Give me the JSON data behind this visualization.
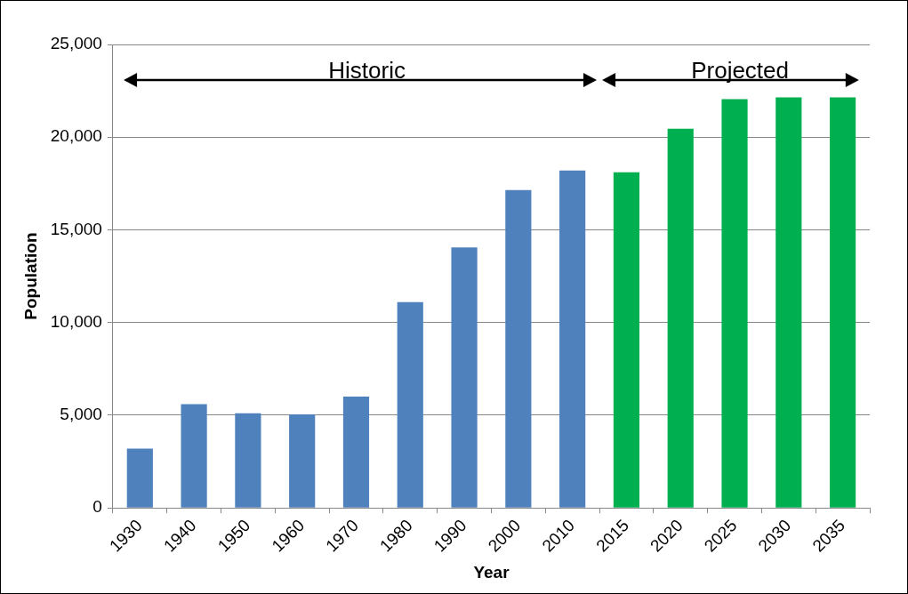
{
  "chart_data": {
    "type": "bar",
    "xlabel": "Year",
    "ylabel": "Population",
    "categories": [
      "1930",
      "1940",
      "1950",
      "1960",
      "1970",
      "1980",
      "1990",
      "2000",
      "2010",
      "2015",
      "2020",
      "2025",
      "2030",
      "2035"
    ],
    "values": [
      3200,
      5600,
      5100,
      5050,
      6000,
      11100,
      14050,
      17150,
      18200,
      18100,
      20450,
      22050,
      22150,
      22150
    ],
    "colors": [
      "#4f81bd",
      "#4f81bd",
      "#4f81bd",
      "#4f81bd",
      "#4f81bd",
      "#4f81bd",
      "#4f81bd",
      "#4f81bd",
      "#4f81bd",
      "#00b050",
      "#00b050",
      "#00b050",
      "#00b050",
      "#00b050"
    ],
    "ylim": [
      0,
      25000
    ],
    "yticks": [
      0,
      {
        "value": 5000,
        "label": "5,000"
      },
      {
        "value": 10000,
        "label": "10,000"
      },
      {
        "value": 15000,
        "label": "15,000"
      },
      {
        "value": 20000,
        "label": "20,000"
      },
      {
        "value": 25000,
        "label": "25,000"
      }
    ],
    "grid": "y",
    "legend": false,
    "annotations": [
      "Historic",
      "Projected"
    ]
  }
}
